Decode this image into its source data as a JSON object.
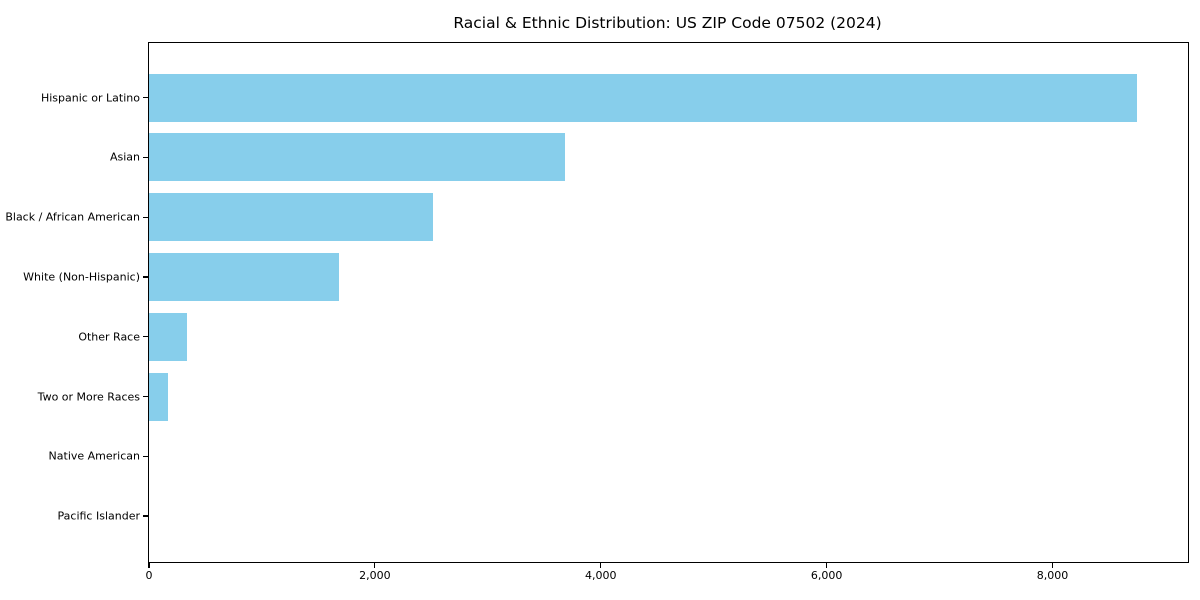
{
  "title": "Racial & Ethnic Distribution: US ZIP Code 07502 (2024)",
  "colors": {
    "bar": "#87CEEB",
    "axis": "#000000",
    "text": "#000000",
    "background": "#FFFFFF"
  },
  "chart_data": {
    "type": "bar",
    "orientation": "horizontal",
    "title": "Racial & Ethnic Distribution: US ZIP Code 07502 (2024)",
    "categories": [
      "Hispanic or Latino",
      "Asian",
      "Black / African American",
      "White (Non-Hispanic)",
      "Other Race",
      "Two or More Races",
      "Native American",
      "Pacific Islander"
    ],
    "values": [
      8745,
      3680,
      2515,
      1685,
      335,
      170,
      0,
      0
    ],
    "xlabel": "",
    "ylabel": "",
    "xlim": [
      0,
      9200
    ],
    "x_ticks": [
      0,
      2000,
      4000,
      6000,
      8000
    ],
    "x_tick_labels": [
      "0",
      "2,000",
      "4,000",
      "6,000",
      "8,000"
    ],
    "grid": false,
    "legend": null,
    "bar_color": "#87CEEB"
  }
}
